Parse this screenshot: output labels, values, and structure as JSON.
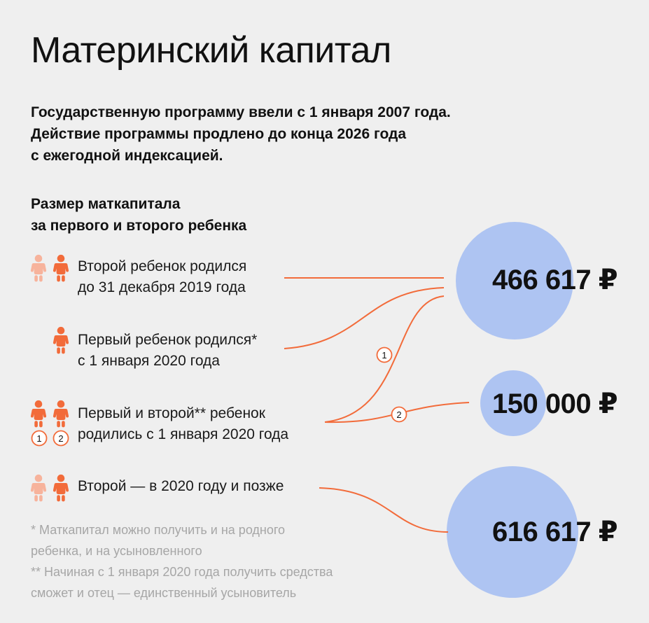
{
  "title": "Материнский капитал",
  "intro": [
    "Государственную программу ввели с 1 января 2007 года.",
    "Действие программы продлено до конца 2026 года",
    "с ежегодной индексацией."
  ],
  "subhead": [
    "Размер маткапитала",
    "за первого и второго ребенка"
  ],
  "rows": [
    {
      "lines": [
        "Второй ребенок родился",
        "до 31 декабря 2019 года"
      ]
    },
    {
      "lines": [
        "Первый ребенок родился*",
        "с 1 января 2020 года"
      ]
    },
    {
      "lines": [
        "Первый и второй** ребенок",
        "родились с 1 января 2020 года"
      ],
      "badges": [
        "1",
        "2"
      ]
    },
    {
      "lines": [
        "Второй — в 2020 году и позже"
      ]
    }
  ],
  "amounts": [
    "466 617 ₽",
    "150 000 ₽",
    "616 617 ₽"
  ],
  "connector_badges": [
    "1",
    "2"
  ],
  "footnotes": [
    "* Маткапитал можно получить и на родного",
    "ребенка, и на усыновленного",
    "** Начиная с 1 января 2020 года получить средства",
    "сможет и отец — единственный усыновитель"
  ],
  "colors": {
    "accent": "#f26b3a",
    "accent_light": "#f7b39c",
    "circle": "#aec4f2"
  },
  "icons": [
    "baby-icon"
  ]
}
